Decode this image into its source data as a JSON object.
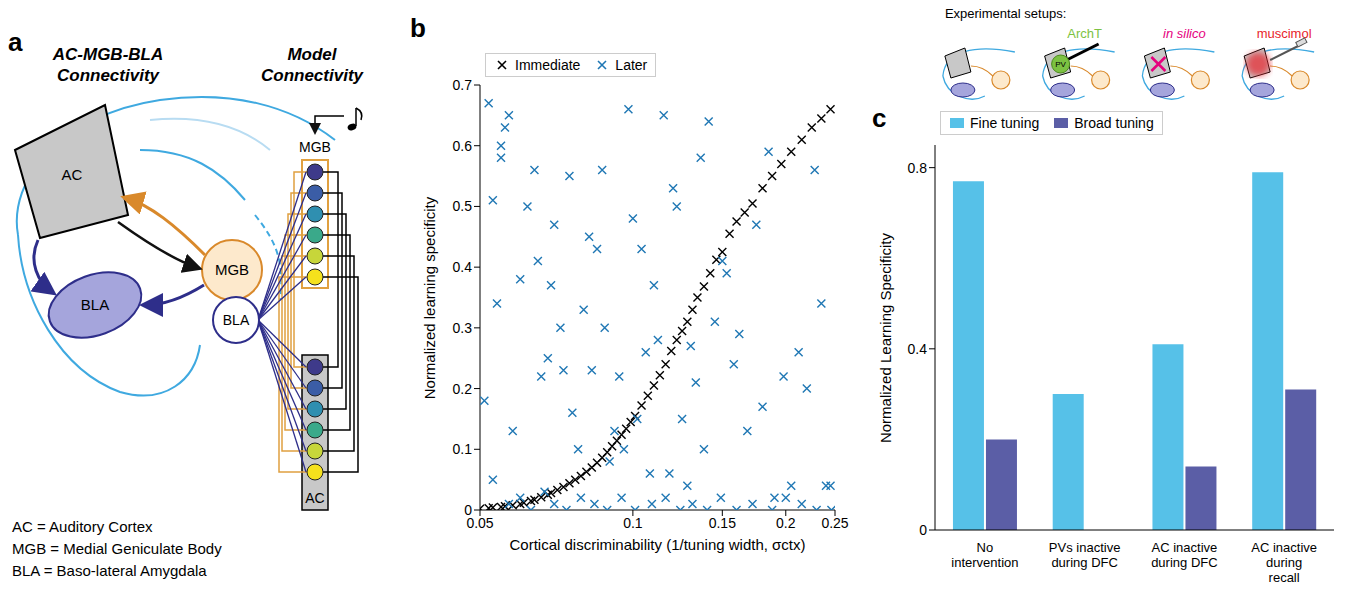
{
  "panels": [
    "a",
    "b",
    "c"
  ],
  "diagram": {
    "anatomy_title": "AC-MGB-BLA Connectivity",
    "model_title": "Model Connectivity",
    "regions": {
      "ac": "AC",
      "mgb": "MGB",
      "bla": "BLA"
    },
    "key": [
      "AC = Auditory Cortex",
      "MGB = Medial Geniculate Body",
      "BLA = Baso-lateral Amygdala"
    ]
  },
  "setups": {
    "title": "Experimental setups:",
    "interventions": [
      {
        "label": "ArchT",
        "cell": "PV",
        "color": "#7cc242"
      },
      {
        "label": "in silico",
        "color": "#e6007e"
      },
      {
        "label": "muscimol",
        "color": "#e8242a"
      }
    ]
  },
  "chart_data": [
    {
      "type": "scatter",
      "x_label": "Cortical discriminability (1/tuning width, σctx)",
      "y_label": "Normalized learning specificity",
      "xlim": [
        0.05,
        0.25
      ],
      "xticks": [
        0.05,
        0.1,
        0.15,
        0.2,
        0.25
      ],
      "ylim": [
        0,
        0.7
      ],
      "yticks": [
        0,
        0.1,
        0.2,
        0.3,
        0.4,
        0.5,
        0.6,
        0.7
      ],
      "log": "x",
      "grid": false,
      "legend": "top",
      "series": [
        {
          "name": "Immediate",
          "color": "#000000",
          "marker": "x",
          "x": [
            0.05,
            0.052,
            0.053,
            0.055,
            0.056,
            0.058,
            0.06,
            0.061,
            0.063,
            0.064,
            0.066,
            0.068,
            0.069,
            0.071,
            0.073,
            0.075,
            0.077,
            0.079,
            0.081,
            0.083,
            0.085,
            0.087,
            0.089,
            0.091,
            0.093,
            0.095,
            0.097,
            0.099,
            0.101,
            0.104,
            0.107,
            0.11,
            0.113,
            0.116,
            0.119,
            0.122,
            0.125,
            0.128,
            0.131,
            0.134,
            0.138,
            0.142,
            0.146,
            0.15,
            0.155,
            0.16,
            0.166,
            0.172,
            0.18,
            0.188,
            0.196,
            0.205,
            0.215,
            0.225,
            0.235,
            0.245
          ],
          "values": [
            0.002,
            0.003,
            0.004,
            0.005,
            0.006,
            0.008,
            0.01,
            0.012,
            0.015,
            0.017,
            0.021,
            0.025,
            0.028,
            0.033,
            0.038,
            0.044,
            0.05,
            0.056,
            0.063,
            0.07,
            0.078,
            0.086,
            0.095,
            0.105,
            0.114,
            0.124,
            0.134,
            0.145,
            0.155,
            0.172,
            0.188,
            0.205,
            0.222,
            0.24,
            0.262,
            0.28,
            0.295,
            0.31,
            0.33,
            0.35,
            0.368,
            0.39,
            0.412,
            0.425,
            0.455,
            0.475,
            0.49,
            0.505,
            0.53,
            0.55,
            0.57,
            0.59,
            0.61,
            0.63,
            0.645,
            0.66
          ]
        },
        {
          "name": "Later",
          "color": "#1f77b4",
          "marker": "x",
          "x": [
            0.052,
            0.053,
            0.054,
            0.055,
            0.051,
            0.053,
            0.056,
            0.057,
            0.055,
            0.058,
            0.06,
            0.062,
            0.064,
            0.065,
            0.066,
            0.068,
            0.069,
            0.07,
            0.072,
            0.073,
            0.075,
            0.076,
            0.078,
            0.08,
            0.082,
            0.083,
            0.085,
            0.087,
            0.088,
            0.09,
            0.092,
            0.094,
            0.096,
            0.098,
            0.1,
            0.102,
            0.104,
            0.106,
            0.108,
            0.11,
            0.112,
            0.115,
            0.118,
            0.12,
            0.122,
            0.125,
            0.128,
            0.13,
            0.133,
            0.136,
            0.138,
            0.141,
            0.145,
            0.15,
            0.153,
            0.158,
            0.162,
            0.168,
            0.175,
            0.18,
            0.185,
            0.19,
            0.198,
            0.205,
            0.212,
            0.22,
            0.228,
            0.235,
            0.24,
            0.057,
            0.06,
            0.063,
            0.067,
            0.07,
            0.074,
            0.079,
            0.084,
            0.089,
            0.095,
            0.101,
            0.109,
            0.116,
            0.124,
            0.131,
            0.14,
            0.149,
            0.16,
            0.172,
            0.188,
            0.2,
            0.215,
            0.23,
            0.245,
            0.246
          ],
          "values": [
            0.67,
            0.51,
            0.34,
            0.6,
            0.18,
            0.05,
            0.63,
            0.65,
            0.58,
            0.13,
            0.38,
            0.5,
            0.56,
            0.41,
            0.22,
            0.25,
            0.37,
            0.47,
            0.3,
            0.23,
            0.55,
            0.16,
            0.1,
            0.33,
            0.45,
            0.23,
            0.43,
            0.56,
            0.3,
            0.08,
            0.13,
            0.22,
            0.1,
            0.66,
            0.48,
            0.15,
            0.43,
            0.26,
            0.06,
            0.37,
            0.28,
            0.65,
            0.06,
            0.53,
            0.5,
            0.15,
            0.04,
            0.27,
            0.21,
            0.58,
            0.1,
            0.64,
            0.31,
            0.41,
            0.39,
            0.24,
            0.29,
            0.13,
            0.47,
            0.17,
            0.59,
            0.02,
            0.22,
            0.04,
            0.26,
            0.2,
            0.56,
            0.34,
            0.04,
            0.01,
            0.02,
            0,
            0.03,
            0.01,
            0,
            0.02,
            0.01,
            0,
            0.02,
            0,
            0.01,
            0.02,
            0,
            0.01,
            0,
            0.02,
            0,
            0.01,
            0,
            0.02,
            0.01,
            0,
            0.04,
            0
          ]
        }
      ]
    },
    {
      "type": "bar",
      "categories": [
        "No intervention",
        "PVs inactive during DFC",
        "AC inactive during DFC",
        "AC inactive during recall"
      ],
      "y_label": "Normalized Learning Specificity",
      "ylim": [
        0,
        0.85
      ],
      "yticks": [
        0,
        0.4,
        0.8
      ],
      "grid": false,
      "legend": "top",
      "series": [
        {
          "name": "Fine tuning",
          "color": "#56c1e8",
          "values": [
            0.77,
            0.3,
            0.41,
            0.79
          ]
        },
        {
          "name": "Broad tuning",
          "color": "#5b5ea6",
          "values": [
            0.2,
            0,
            0.14,
            0.31
          ]
        }
      ]
    }
  ]
}
